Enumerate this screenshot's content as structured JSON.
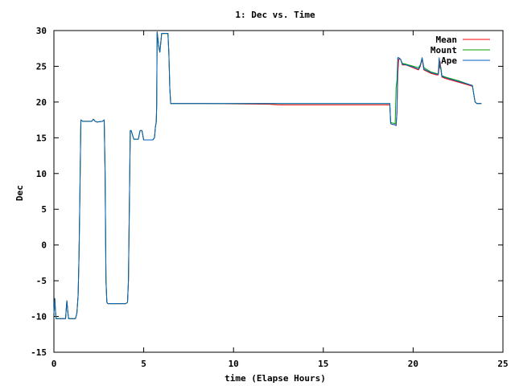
{
  "chart_data": {
    "type": "line",
    "title": "1: Dec vs. Time",
    "xlabel": "time (Elapse Hours)",
    "ylabel": "Dec",
    "xlim": [
      0,
      25
    ],
    "ylim": [
      -15,
      30
    ],
    "xticks": [
      0,
      5,
      10,
      15,
      20,
      25
    ],
    "yticks": [
      -15,
      -10,
      -5,
      0,
      5,
      10,
      15,
      20,
      25,
      30
    ],
    "grid": false,
    "legend_position": "top-right",
    "series": [
      {
        "name": "Mean",
        "color": "#ff0000",
        "x": [
          0.0,
          0.05,
          0.08,
          0.12,
          0.2,
          0.5,
          0.65,
          0.7,
          0.72,
          0.78,
          0.82,
          0.9,
          1.2,
          1.28,
          1.35,
          1.4,
          1.45,
          1.5,
          1.55,
          1.6,
          1.9,
          2.1,
          2.2,
          2.3,
          2.4,
          2.7,
          2.8,
          2.85,
          2.9,
          2.95,
          3.0,
          3.5,
          4.0,
          4.1,
          4.15,
          4.2,
          4.25,
          4.3,
          4.45,
          4.5,
          4.6,
          4.7,
          4.8,
          4.9,
          5.0,
          5.5,
          5.6,
          5.65,
          5.7,
          5.72,
          5.75,
          5.85,
          5.9,
          5.95,
          6.0,
          6.3,
          6.35,
          6.4,
          6.42,
          6.45,
          6.5,
          8.0,
          12.0,
          12.5,
          16.5,
          18.5,
          18.7,
          18.75,
          18.8,
          19.0,
          19.05,
          19.1,
          19.15,
          19.2,
          19.3,
          19.4,
          19.6,
          20.0,
          20.3,
          20.4,
          20.5,
          20.6,
          21.0,
          21.3,
          21.4,
          21.45,
          21.5,
          21.55,
          21.6,
          21.8,
          22.5,
          23.3,
          23.35,
          23.45,
          23.5,
          23.55,
          23.6,
          23.8
        ],
        "y": [
          -9.5,
          -7.5,
          -9.0,
          -10.3,
          -10.3,
          -10.3,
          -10.3,
          -8.5,
          -7.8,
          -9.5,
          -10.3,
          -10.3,
          -10.3,
          -9.5,
          -7.0,
          -1.5,
          8.0,
          17.5,
          17.4,
          17.3,
          17.3,
          17.3,
          17.6,
          17.3,
          17.2,
          17.3,
          17.5,
          10.0,
          -5.0,
          -8.0,
          -8.2,
          -8.2,
          -8.2,
          -8.0,
          -5.0,
          5.0,
          16.0,
          16.0,
          14.8,
          14.8,
          14.8,
          14.8,
          16.0,
          16.0,
          14.7,
          14.7,
          15.0,
          16.5,
          17.2,
          19.5,
          29.8,
          27.5,
          27.0,
          28.3,
          29.6,
          29.6,
          29.6,
          27.0,
          25.0,
          22.0,
          19.8,
          19.8,
          19.7,
          19.6,
          19.6,
          19.6,
          19.6,
          17.0,
          16.9,
          16.8,
          16.7,
          18.5,
          24.0,
          26.0,
          26.0,
          25.2,
          25.2,
          24.8,
          24.5,
          25.0,
          26.0,
          24.5,
          24.0,
          23.8,
          23.8,
          24.8,
          25.7,
          24.5,
          23.5,
          23.3,
          22.8,
          22.2,
          21.5,
          20.0,
          19.9,
          19.8,
          19.8,
          19.8
        ]
      },
      {
        "name": "Mount",
        "color": "#00a000",
        "x": [
          0.0,
          0.05,
          0.08,
          0.12,
          0.2,
          0.5,
          0.65,
          0.7,
          0.72,
          0.78,
          0.82,
          0.9,
          1.2,
          1.28,
          1.35,
          1.4,
          1.45,
          1.5,
          1.55,
          1.6,
          1.9,
          2.1,
          2.2,
          2.3,
          2.4,
          2.7,
          2.8,
          2.85,
          2.9,
          2.95,
          3.0,
          3.5,
          4.0,
          4.1,
          4.15,
          4.2,
          4.25,
          4.3,
          4.45,
          4.5,
          4.6,
          4.7,
          4.8,
          4.9,
          5.0,
          5.5,
          5.6,
          5.65,
          5.7,
          5.72,
          5.75,
          5.85,
          5.9,
          5.95,
          6.0,
          6.3,
          6.35,
          6.4,
          6.42,
          6.45,
          6.5,
          8.0,
          12.0,
          12.5,
          16.5,
          18.5,
          18.7,
          18.75,
          18.8,
          19.0,
          19.05,
          19.1,
          19.15,
          19.2,
          19.3,
          19.4,
          19.6,
          20.0,
          20.3,
          20.4,
          20.5,
          20.6,
          21.0,
          21.3,
          21.4,
          21.45,
          21.5,
          21.55,
          21.6,
          21.8,
          22.5,
          23.3,
          23.35,
          23.45,
          23.5,
          23.55,
          23.6,
          23.8
        ],
        "y": [
          -9.5,
          -7.5,
          -9.0,
          -10.3,
          -10.3,
          -10.3,
          -10.3,
          -8.5,
          -7.8,
          -9.5,
          -10.3,
          -10.3,
          -10.3,
          -9.5,
          -7.0,
          -1.5,
          8.0,
          17.5,
          17.4,
          17.3,
          17.3,
          17.3,
          17.6,
          17.3,
          17.2,
          17.3,
          17.5,
          10.0,
          -5.0,
          -8.0,
          -8.2,
          -8.2,
          -8.2,
          -8.0,
          -5.0,
          5.0,
          16.0,
          16.0,
          14.8,
          14.8,
          14.8,
          14.8,
          16.0,
          16.0,
          14.7,
          14.7,
          15.0,
          16.5,
          17.2,
          19.5,
          29.8,
          27.5,
          27.0,
          28.3,
          29.6,
          29.6,
          29.6,
          27.0,
          25.0,
          22.0,
          19.8,
          19.8,
          19.8,
          19.8,
          19.8,
          19.8,
          19.8,
          17.2,
          17.1,
          17.0,
          22.0,
          23.0,
          26.2,
          26.2,
          26.0,
          25.4,
          25.3,
          25.0,
          24.8,
          25.2,
          26.2,
          24.8,
          24.2,
          24.0,
          23.9,
          26.0,
          25.0,
          24.8,
          23.7,
          23.5,
          23.0,
          22.3,
          21.5,
          20.0,
          19.9,
          19.8,
          19.8,
          19.8
        ]
      },
      {
        "name": "Ape",
        "color": "#0060c0",
        "x": [
          0.0,
          0.05,
          0.08,
          0.12,
          0.2,
          0.5,
          0.65,
          0.7,
          0.72,
          0.78,
          0.82,
          0.9,
          1.2,
          1.28,
          1.35,
          1.4,
          1.45,
          1.5,
          1.55,
          1.6,
          1.9,
          2.1,
          2.2,
          2.3,
          2.4,
          2.7,
          2.8,
          2.85,
          2.9,
          2.95,
          3.0,
          3.5,
          4.0,
          4.1,
          4.15,
          4.2,
          4.25,
          4.3,
          4.45,
          4.5,
          4.6,
          4.7,
          4.8,
          4.9,
          5.0,
          5.5,
          5.6,
          5.65,
          5.7,
          5.72,
          5.75,
          5.85,
          5.9,
          5.95,
          6.0,
          6.3,
          6.35,
          6.4,
          6.42,
          6.45,
          6.5,
          8.0,
          12.0,
          12.5,
          16.5,
          18.5,
          18.7,
          18.75,
          18.8,
          19.0,
          19.05,
          19.1,
          19.15,
          19.2,
          19.3,
          19.4,
          19.6,
          20.0,
          20.3,
          20.4,
          20.5,
          20.6,
          21.0,
          21.3,
          21.4,
          21.45,
          21.5,
          21.55,
          21.6,
          21.8,
          22.5,
          23.3,
          23.35,
          23.45,
          23.5,
          23.55,
          23.6,
          23.8
        ],
        "y": [
          -9.5,
          -7.5,
          -9.0,
          -10.3,
          -10.3,
          -10.3,
          -10.3,
          -8.5,
          -7.8,
          -9.5,
          -10.3,
          -10.3,
          -10.3,
          -9.5,
          -7.0,
          -1.5,
          8.0,
          17.5,
          17.4,
          17.3,
          17.3,
          17.3,
          17.6,
          17.3,
          17.2,
          17.3,
          17.5,
          10.0,
          -5.0,
          -8.0,
          -8.2,
          -8.2,
          -8.2,
          -8.0,
          -5.0,
          5.0,
          16.0,
          16.0,
          14.8,
          14.8,
          14.8,
          14.8,
          16.0,
          16.0,
          14.7,
          14.7,
          15.0,
          16.5,
          17.2,
          19.5,
          29.8,
          27.5,
          27.0,
          28.3,
          29.6,
          29.6,
          29.6,
          27.0,
          25.0,
          22.0,
          19.8,
          19.8,
          19.8,
          19.8,
          19.8,
          19.8,
          19.8,
          17.0,
          16.9,
          16.8,
          16.7,
          18.5,
          26.2,
          26.2,
          26.0,
          25.3,
          25.2,
          24.9,
          24.6,
          25.1,
          26.2,
          24.6,
          24.1,
          23.9,
          23.9,
          26.2,
          24.8,
          24.6,
          23.6,
          23.4,
          22.9,
          22.3,
          21.5,
          20.0,
          19.9,
          19.8,
          19.8,
          19.8
        ]
      }
    ]
  }
}
